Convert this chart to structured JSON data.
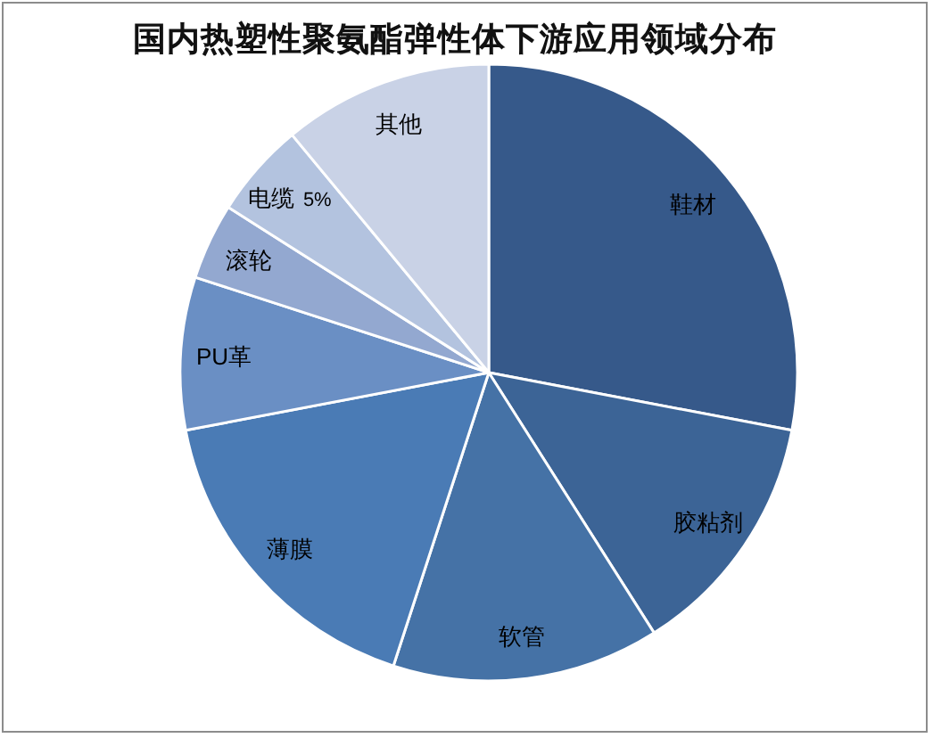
{
  "chart_data": {
    "type": "pie",
    "title": "国内热塑性聚氨酯弹性体下游应用领域分布",
    "categories": [
      "鞋材",
      "胶粘剂",
      "软管",
      "薄膜",
      "PU革",
      "滚轮",
      "电缆",
      "其他"
    ],
    "values": [
      28,
      13,
      14,
      17,
      8,
      4,
      5,
      11
    ],
    "colors": [
      "#36598a",
      "#3c6496",
      "#4572a6",
      "#4a7bb5",
      "#6a8fc4",
      "#93a8d0",
      "#b3c3df",
      "#c9d2e6"
    ],
    "value_labels": [
      null,
      null,
      null,
      null,
      null,
      null,
      "5%",
      null
    ]
  }
}
